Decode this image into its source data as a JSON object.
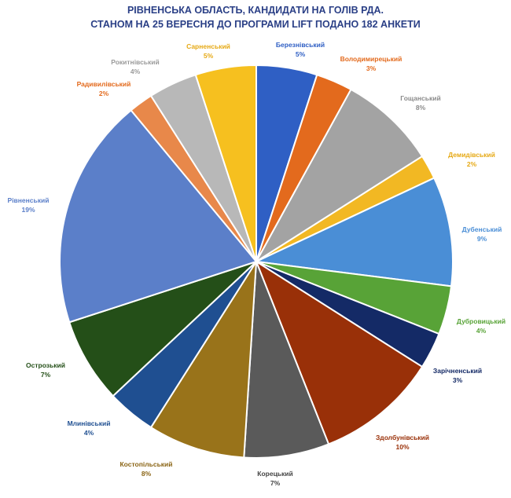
{
  "title_line1": "РІВНЕНСЬКА ОБЛАСТЬ, КАНДИДАТИ НА ГОЛІВ РДА.",
  "title_line2": "СТАНОМ НА 25 ВЕРЕСНЯ ДО ПРОГРАМИ LIFT ПОДАНО 182 АНКЕТИ",
  "chart_data": {
    "type": "pie",
    "title": "РІВНЕНСЬКА ОБЛАСТЬ, КАНДИДАТИ НА ГОЛІВ РДА. СТАНОМ НА 25 ВЕРЕСНЯ ДО ПРОГРАМИ LIFT ПОДАНО 182 АНКЕТИ",
    "categories": [
      "Березнівський",
      "Володимирецький",
      "Гощанський",
      "Демидівський",
      "Дубенський",
      "Дубровицький",
      "Зарічненський",
      "Здолбунівський",
      "Корецький",
      "Костопільський",
      "Млинівський",
      "Острозький",
      "Рівненський",
      "Радивилівський",
      "Рокитнівський",
      "Сарненський"
    ],
    "values": [
      5,
      3,
      8,
      2,
      9,
      4,
      3,
      10,
      7,
      8,
      4,
      7,
      19,
      2,
      4,
      5
    ],
    "value_labels": [
      "5%",
      "3%",
      "8%",
      "2%",
      "9%",
      "4%",
      "3%",
      "10%",
      "7%",
      "8%",
      "4%",
      "7%",
      "19%",
      "2%",
      "4%",
      "5%"
    ],
    "colors": [
      "#2f5fc4",
      "#e36a1d",
      "#a3a3a3",
      "#f2b823",
      "#4a8ed6",
      "#58a337",
      "#142a66",
      "#993008",
      "#5a5a5a",
      "#99731a",
      "#1f4f91",
      "#244f18",
      "#5b7fc9",
      "#e8884a",
      "#b8b8b8",
      "#f6c01f"
    ],
    "label_colors": [
      "#2f5fc4",
      "#e36a1d",
      "#8a8a8a",
      "#e6a915",
      "#4a8ed6",
      "#58a337",
      "#142a66",
      "#993008",
      "#444444",
      "#8a6414",
      "#1f4f91",
      "#244f18",
      "#5b7fc9",
      "#e36a1d",
      "#9a9a9a",
      "#e6a915"
    ],
    "legend": "none"
  }
}
